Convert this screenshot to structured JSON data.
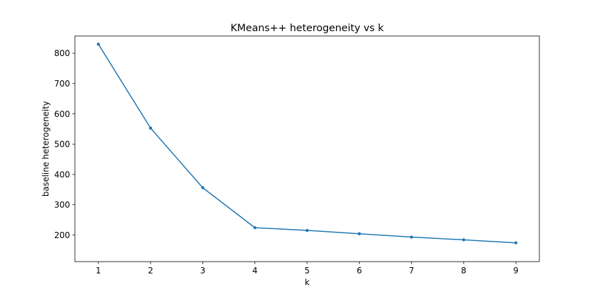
{
  "chart_data": {
    "type": "line",
    "title": "KMeans++ heterogeneity vs k",
    "xlabel": "k",
    "ylabel": "baseline heterogeneity",
    "x": [
      1,
      2,
      3,
      4,
      5,
      6,
      7,
      8,
      9
    ],
    "series": [
      {
        "values": [
          830,
          553,
          356,
          224,
          215,
          204,
          193,
          184,
          174
        ],
        "color": "#1f77b4",
        "marker": "dot"
      }
    ],
    "xlim": [
      0.55,
      9.45
    ],
    "ylim": [
      112,
      857
    ],
    "xticks": [
      1,
      2,
      3,
      4,
      5,
      6,
      7,
      8,
      9
    ],
    "yticks": [
      200,
      300,
      400,
      500,
      600,
      700,
      800
    ],
    "grid": false,
    "legend": "none"
  }
}
